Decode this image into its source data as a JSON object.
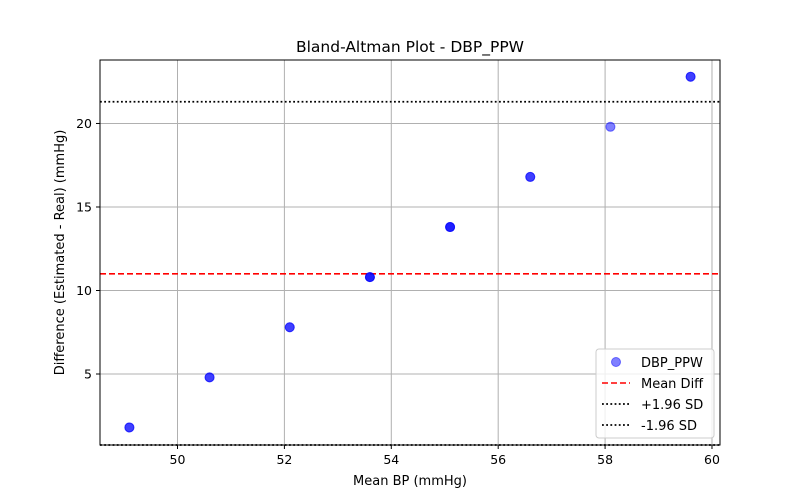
{
  "chart_data": {
    "type": "scatter",
    "title": "Bland-Altman Plot - DBP_PPW",
    "xlabel": "Mean BP (mmHg)",
    "ylabel": "Difference (Estimated - Real) (mmHg)",
    "xlim": [
      48.55,
      60.15
    ],
    "ylim": [
      0.75,
      23.8
    ],
    "grid": true,
    "x_ticks": [
      50,
      52,
      54,
      56,
      58,
      60
    ],
    "y_ticks": [
      5,
      10,
      15,
      20
    ],
    "series": [
      {
        "name": "DBP_PPW",
        "color": "#0000ff",
        "opacity": 0.5,
        "points": [
          {
            "x": 49.1,
            "y": 1.8
          },
          {
            "x": 49.1,
            "y": 1.8
          },
          {
            "x": 50.6,
            "y": 4.8
          },
          {
            "x": 50.6,
            "y": 4.8
          },
          {
            "x": 52.1,
            "y": 7.8
          },
          {
            "x": 52.1,
            "y": 7.8
          },
          {
            "x": 53.6,
            "y": 10.8
          },
          {
            "x": 53.6,
            "y": 10.8
          },
          {
            "x": 53.6,
            "y": 10.8
          },
          {
            "x": 55.1,
            "y": 13.8
          },
          {
            "x": 55.1,
            "y": 13.8
          },
          {
            "x": 55.1,
            "y": 13.8
          },
          {
            "x": 56.6,
            "y": 16.8
          },
          {
            "x": 56.6,
            "y": 16.8
          },
          {
            "x": 58.1,
            "y": 19.8
          },
          {
            "x": 59.6,
            "y": 22.8
          },
          {
            "x": 59.6,
            "y": 22.8
          }
        ]
      }
    ],
    "reference_lines": [
      {
        "name": "Mean Diff",
        "y": 11.0,
        "color": "#ff0000",
        "style": "dashed"
      },
      {
        "name": "+1.96 SD",
        "y": 21.3,
        "color": "#000000",
        "style": "dotted"
      },
      {
        "name": "-1.96 SD",
        "y": 0.75,
        "color": "#000000",
        "style": "dotted"
      }
    ],
    "legend": {
      "position": "lower-right",
      "entries": [
        "DBP_PPW",
        "Mean Diff",
        "+1.96 SD",
        "-1.96 SD"
      ]
    }
  }
}
